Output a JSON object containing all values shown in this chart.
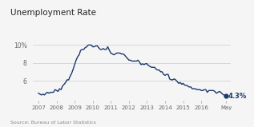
{
  "title": "Unemployment Rate",
  "source_text": "Source: Bureau of Labor Statistics",
  "line_color": "#1b3a6b",
  "background_color": "#f5f5f5",
  "ytick_values": [
    6,
    8,
    10
  ],
  "ytick_labels": [
    "6",
    "8",
    "10%"
  ],
  "xlim_start": 2006.7,
  "xlim_end": 2017.65,
  "ylim": [
    3.8,
    11.2
  ],
  "end_label": "4.3%",
  "x_tick_positions": [
    2007,
    2008,
    2009,
    2010,
    2011,
    2012,
    2013,
    2014,
    2015,
    2016,
    2017.38
  ],
  "x_tick_labels": [
    "2007",
    "2008",
    "2009",
    "2010",
    "2011",
    "2012",
    "2013",
    "2014",
    "2015",
    "2016",
    "May"
  ],
  "unemployment_data": [
    [
      2007.0,
      4.6
    ],
    [
      2007.08,
      4.5
    ],
    [
      2007.17,
      4.4
    ],
    [
      2007.25,
      4.5
    ],
    [
      2007.33,
      4.4
    ],
    [
      2007.42,
      4.6
    ],
    [
      2007.5,
      4.7
    ],
    [
      2007.58,
      4.6
    ],
    [
      2007.67,
      4.7
    ],
    [
      2007.75,
      4.7
    ],
    [
      2007.83,
      4.7
    ],
    [
      2007.92,
      5.0
    ],
    [
      2008.0,
      4.9
    ],
    [
      2008.08,
      4.8
    ],
    [
      2008.17,
      5.1
    ],
    [
      2008.25,
      5.0
    ],
    [
      2008.33,
      5.4
    ],
    [
      2008.42,
      5.6
    ],
    [
      2008.5,
      5.8
    ],
    [
      2008.58,
      6.1
    ],
    [
      2008.67,
      6.1
    ],
    [
      2008.75,
      6.5
    ],
    [
      2008.83,
      6.8
    ],
    [
      2008.92,
      7.3
    ],
    [
      2009.0,
      7.8
    ],
    [
      2009.08,
      8.3
    ],
    [
      2009.17,
      8.7
    ],
    [
      2009.25,
      8.9
    ],
    [
      2009.33,
      9.4
    ],
    [
      2009.42,
      9.5
    ],
    [
      2009.5,
      9.5
    ],
    [
      2009.58,
      9.7
    ],
    [
      2009.67,
      9.8
    ],
    [
      2009.75,
      10.0
    ],
    [
      2009.83,
      10.0
    ],
    [
      2009.92,
      10.0
    ],
    [
      2010.0,
      9.8
    ],
    [
      2010.08,
      9.8
    ],
    [
      2010.17,
      9.9
    ],
    [
      2010.25,
      9.9
    ],
    [
      2010.33,
      9.7
    ],
    [
      2010.42,
      9.5
    ],
    [
      2010.5,
      9.5
    ],
    [
      2010.58,
      9.6
    ],
    [
      2010.67,
      9.5
    ],
    [
      2010.75,
      9.5
    ],
    [
      2010.83,
      9.8
    ],
    [
      2010.92,
      9.4
    ],
    [
      2011.0,
      9.1
    ],
    [
      2011.08,
      9.0
    ],
    [
      2011.17,
      8.9
    ],
    [
      2011.25,
      9.0
    ],
    [
      2011.33,
      9.1
    ],
    [
      2011.42,
      9.1
    ],
    [
      2011.5,
      9.1
    ],
    [
      2011.58,
      9.0
    ],
    [
      2011.67,
      9.0
    ],
    [
      2011.75,
      8.9
    ],
    [
      2011.83,
      8.7
    ],
    [
      2011.92,
      8.5
    ],
    [
      2012.0,
      8.3
    ],
    [
      2012.08,
      8.3
    ],
    [
      2012.17,
      8.2
    ],
    [
      2012.25,
      8.2
    ],
    [
      2012.33,
      8.2
    ],
    [
      2012.42,
      8.2
    ],
    [
      2012.5,
      8.3
    ],
    [
      2012.58,
      8.1
    ],
    [
      2012.67,
      7.8
    ],
    [
      2012.75,
      7.9
    ],
    [
      2012.83,
      7.8
    ],
    [
      2012.92,
      7.9
    ],
    [
      2013.0,
      7.9
    ],
    [
      2013.08,
      7.7
    ],
    [
      2013.17,
      7.6
    ],
    [
      2013.25,
      7.5
    ],
    [
      2013.33,
      7.5
    ],
    [
      2013.42,
      7.5
    ],
    [
      2013.5,
      7.3
    ],
    [
      2013.58,
      7.2
    ],
    [
      2013.67,
      7.2
    ],
    [
      2013.75,
      7.0
    ],
    [
      2013.83,
      7.0
    ],
    [
      2013.92,
      6.7
    ],
    [
      2014.0,
      6.6
    ],
    [
      2014.08,
      6.7
    ],
    [
      2014.17,
      6.7
    ],
    [
      2014.25,
      6.2
    ],
    [
      2014.33,
      6.1
    ],
    [
      2014.42,
      6.1
    ],
    [
      2014.5,
      6.2
    ],
    [
      2014.58,
      6.1
    ],
    [
      2014.67,
      5.9
    ],
    [
      2014.75,
      5.7
    ],
    [
      2014.83,
      5.8
    ],
    [
      2014.92,
      5.6
    ],
    [
      2015.0,
      5.7
    ],
    [
      2015.08,
      5.5
    ],
    [
      2015.17,
      5.5
    ],
    [
      2015.25,
      5.4
    ],
    [
      2015.33,
      5.3
    ],
    [
      2015.42,
      5.3
    ],
    [
      2015.5,
      5.1
    ],
    [
      2015.58,
      5.1
    ],
    [
      2015.67,
      5.1
    ],
    [
      2015.75,
      5.0
    ],
    [
      2015.83,
      5.0
    ],
    [
      2015.92,
      5.0
    ],
    [
      2016.0,
      4.9
    ],
    [
      2016.08,
      4.9
    ],
    [
      2016.17,
      5.0
    ],
    [
      2016.25,
      5.0
    ],
    [
      2016.33,
      4.7
    ],
    [
      2016.42,
      4.9
    ],
    [
      2016.5,
      4.9
    ],
    [
      2016.58,
      4.9
    ],
    [
      2016.67,
      4.9
    ],
    [
      2016.75,
      4.8
    ],
    [
      2016.83,
      4.6
    ],
    [
      2016.92,
      4.7
    ],
    [
      2017.0,
      4.8
    ],
    [
      2017.08,
      4.7
    ],
    [
      2017.17,
      4.5
    ],
    [
      2017.25,
      4.4
    ],
    [
      2017.38,
      4.3
    ]
  ]
}
